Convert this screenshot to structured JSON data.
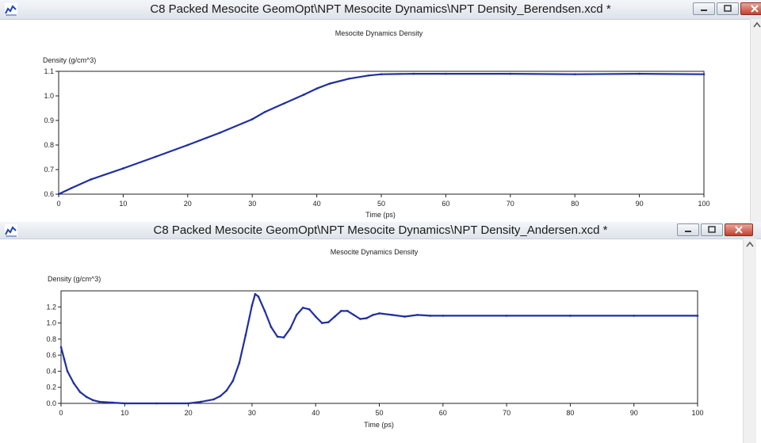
{
  "windows": [
    {
      "title": "C8 Packed Mesocite GeomOpt\\NPT Mesocite Dynamics\\NPT Density_Berendsen.xcd *",
      "chart_title": "Mesocite Dynamics Density",
      "ylabel": "Density (g/cm^3)",
      "xlabel": "Time (ps)"
    },
    {
      "title": "C8 Packed Mesocite GeomOpt\\NPT Mesocite Dynamics\\NPT Density_Andersen.xcd *",
      "chart_title": "Mesocite Dynamics Density",
      "ylabel": "Density (g/cm^3)",
      "xlabel": "Time (ps)"
    }
  ],
  "chart_data": [
    {
      "type": "line",
      "title": "Mesocite Dynamics Density",
      "xlabel": "Time (ps)",
      "ylabel": "Density (g/cm^3)",
      "xlim": [
        0,
        100
      ],
      "ylim": [
        0.6,
        1.1
      ],
      "xticks": [
        0,
        10,
        20,
        30,
        40,
        50,
        60,
        70,
        80,
        90,
        100
      ],
      "yticks": [
        0.6,
        0.7,
        0.8,
        0.9,
        1.0,
        1.1
      ],
      "ytick_labels": [
        "0.6",
        "0.7",
        "0.8",
        "0.9",
        "1.0",
        "1.1"
      ],
      "grid": false,
      "color": "#1f2fa0",
      "x": [
        0,
        2,
        5,
        10,
        15,
        20,
        25,
        30,
        32,
        35,
        38,
        40,
        42,
        45,
        48,
        50,
        55,
        60,
        70,
        80,
        90,
        100
      ],
      "y": [
        0.6,
        0.625,
        0.66,
        0.705,
        0.752,
        0.8,
        0.85,
        0.905,
        0.935,
        0.97,
        1.005,
        1.03,
        1.05,
        1.07,
        1.083,
        1.088,
        1.09,
        1.09,
        1.09,
        1.088,
        1.09,
        1.088
      ]
    },
    {
      "type": "line",
      "title": "Mesocite Dynamics Density",
      "xlabel": "Time (ps)",
      "ylabel": "Density (g/cm^3)",
      "xlim": [
        0,
        100
      ],
      "ylim": [
        0,
        1.4
      ],
      "xticks": [
        0,
        10,
        20,
        30,
        40,
        50,
        60,
        70,
        80,
        90,
        100
      ],
      "yticks": [
        0,
        0.2,
        0.4,
        0.6,
        0.8,
        1.0,
        1.2
      ],
      "ytick_labels": [
        "0.0",
        "0.2",
        "0.4",
        "0.6",
        "0.8",
        "1.0",
        "1.2"
      ],
      "grid": false,
      "color": "#1f2fa0",
      "x": [
        0,
        0.5,
        1,
        2,
        3,
        4,
        5,
        6,
        8,
        10,
        15,
        20,
        22,
        24,
        25,
        26,
        27,
        28,
        29,
        30,
        30.5,
        31,
        32,
        33,
        34,
        35,
        36,
        37,
        38,
        39,
        40,
        41,
        42,
        43,
        44,
        45,
        46,
        47,
        48,
        49,
        50,
        52,
        54,
        56,
        58,
        60,
        70,
        80,
        90,
        100
      ],
      "y": [
        0.7,
        0.55,
        0.4,
        0.25,
        0.14,
        0.08,
        0.04,
        0.02,
        0.01,
        0.0,
        0.0,
        0.0,
        0.02,
        0.05,
        0.09,
        0.16,
        0.28,
        0.5,
        0.85,
        1.22,
        1.36,
        1.33,
        1.15,
        0.95,
        0.83,
        0.82,
        0.93,
        1.1,
        1.19,
        1.17,
        1.08,
        1.0,
        1.01,
        1.08,
        1.15,
        1.15,
        1.1,
        1.05,
        1.06,
        1.1,
        1.12,
        1.1,
        1.08,
        1.1,
        1.09,
        1.09,
        1.09,
        1.09,
        1.09,
        1.09
      ]
    }
  ]
}
